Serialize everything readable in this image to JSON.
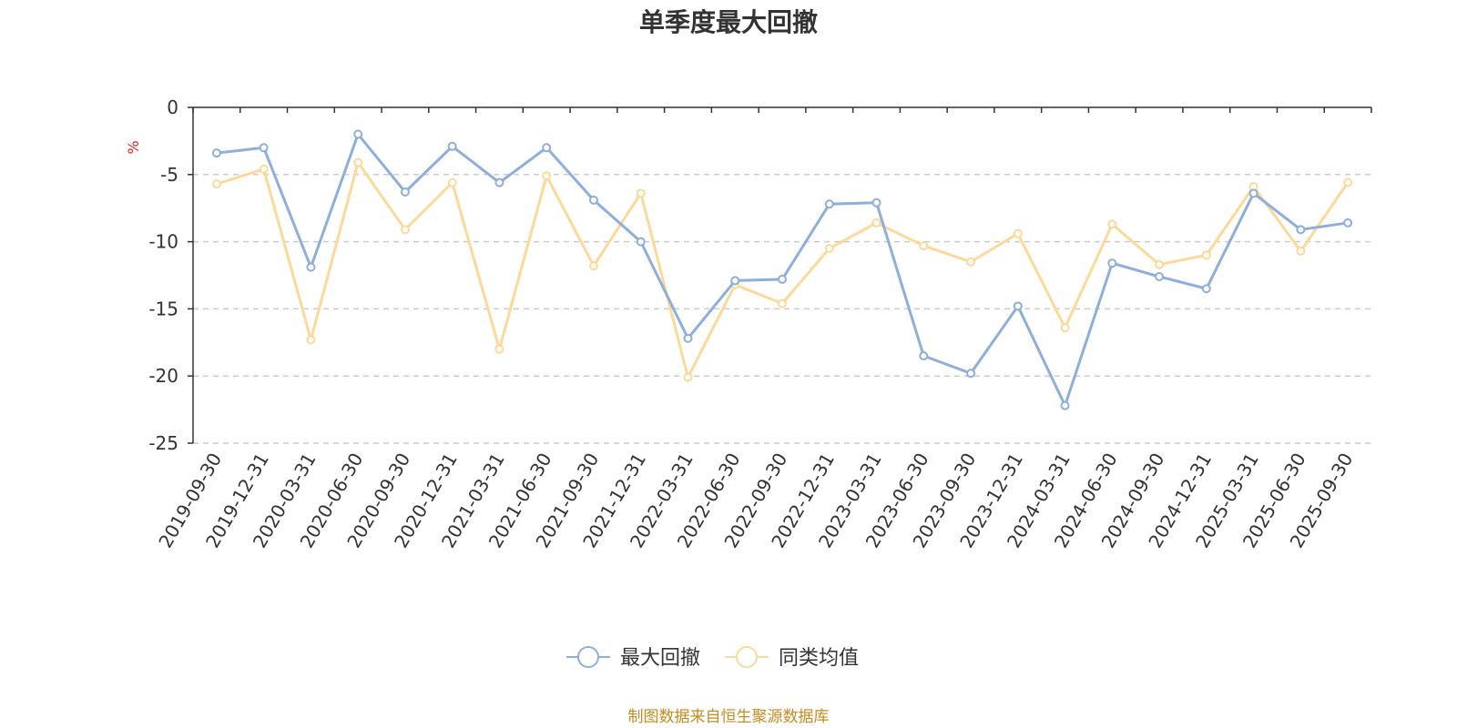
{
  "chart_data": {
    "type": "line",
    "title": "单季度最大回撤",
    "ylabel": "%",
    "ylim": [
      -25,
      0
    ],
    "yticks": [
      0,
      -5,
      -10,
      -15,
      -20,
      -25
    ],
    "grid": true,
    "legend_position": "bottom-center",
    "categories": [
      "2019-09-30",
      "2019-12-31",
      "2020-03-31",
      "2020-06-30",
      "2020-09-30",
      "2020-12-31",
      "2021-03-31",
      "2021-06-30",
      "2021-09-30",
      "2021-12-31",
      "2022-03-31",
      "2022-06-30",
      "2022-09-30",
      "2022-12-31",
      "2023-03-31",
      "2023-06-30",
      "2023-09-30",
      "2023-12-31",
      "2024-03-31",
      "2024-06-30",
      "2024-09-30",
      "2024-12-31",
      "2025-03-31",
      "2025-06-30",
      "2025-09-30"
    ],
    "series": [
      {
        "name": "最大回撤",
        "color": "#8eaedb",
        "values": [
          -3.4,
          -3.0,
          -11.9,
          -2.0,
          -6.3,
          -2.9,
          -5.6,
          -3.0,
          -6.9,
          -10.0,
          -17.2,
          -12.9,
          -12.8,
          -7.2,
          -7.1,
          -18.5,
          -19.8,
          -14.8,
          -22.2,
          -11.6,
          -12.6,
          -13.5,
          -6.4,
          -9.1,
          -8.6
        ]
      },
      {
        "name": "同类均值",
        "color": "#fdd999",
        "values": [
          -5.7,
          -4.6,
          -17.3,
          -4.1,
          -9.1,
          -5.6,
          -18.0,
          -5.1,
          -11.8,
          -6.4,
          -20.1,
          -13.2,
          -14.6,
          -10.5,
          -8.6,
          -10.3,
          -11.5,
          -9.4,
          -16.4,
          -8.7,
          -11.7,
          -11.0,
          -5.9,
          -10.7,
          -5.6
        ]
      }
    ],
    "source_note": "制图数据来自恒生聚源数据库",
    "source_color": "#c98a1e",
    "unit_color": "#e02020"
  }
}
